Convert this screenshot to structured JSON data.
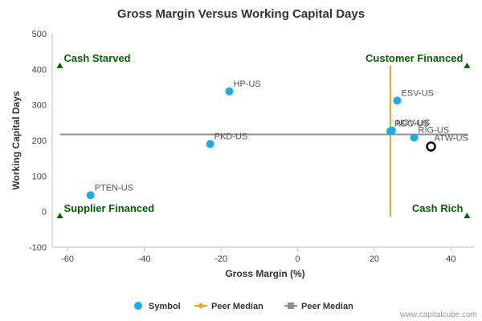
{
  "chart_data": {
    "type": "scatter",
    "title": "Gross Margin Versus Working Capital Days",
    "xlabel": "Gross Margin (%)",
    "ylabel": "Working Capital Days",
    "xlim": [
      -64,
      46
    ],
    "ylim": [
      -100,
      500
    ],
    "x_ticks": [
      -60,
      -40,
      -20,
      0,
      20,
      40
    ],
    "y_ticks": [
      -100,
      0,
      100,
      200,
      300,
      400,
      500
    ],
    "grid": false,
    "legend_position": "bottom",
    "colors": {
      "symbol": "#1aadee",
      "peer_median_x": "#f4a21f",
      "peer_median_y": "#8a8f99",
      "quadrant_text": "#006400",
      "highlight": "#000000"
    },
    "points": [
      {
        "label": "HP-US",
        "x": -17.8,
        "y": 338
      },
      {
        "label": "PTEN-US",
        "x": -54,
        "y": 46
      },
      {
        "label": "PKD-US",
        "x": -22.8,
        "y": 190
      },
      {
        "label": "ESV-US",
        "x": 26,
        "y": 312
      },
      {
        "label": "RDC-US",
        "x": 24.2,
        "y": 226
      },
      {
        "label": "NOV-US",
        "x": 24.6,
        "y": 228
      },
      {
        "label": "RIG-US",
        "x": 30.4,
        "y": 208
      }
    ],
    "highlight_point": {
      "label": "ATW-US",
      "x": 34.8,
      "y": 183
    },
    "peer_median_x": 24.2,
    "peer_median_y": 217,
    "quadrants": {
      "top_left": "Cash Starved",
      "top_right": "Customer Financed",
      "bottom_left": "Supplier Financed",
      "bottom_right": "Cash Rich"
    },
    "legend": [
      {
        "name": "Symbol",
        "marker": "circle"
      },
      {
        "name": "Peer Median",
        "marker": "diamond-line"
      },
      {
        "name": "Peer Median",
        "marker": "square-line"
      }
    ]
  },
  "credit": "www.capitalcube.com"
}
